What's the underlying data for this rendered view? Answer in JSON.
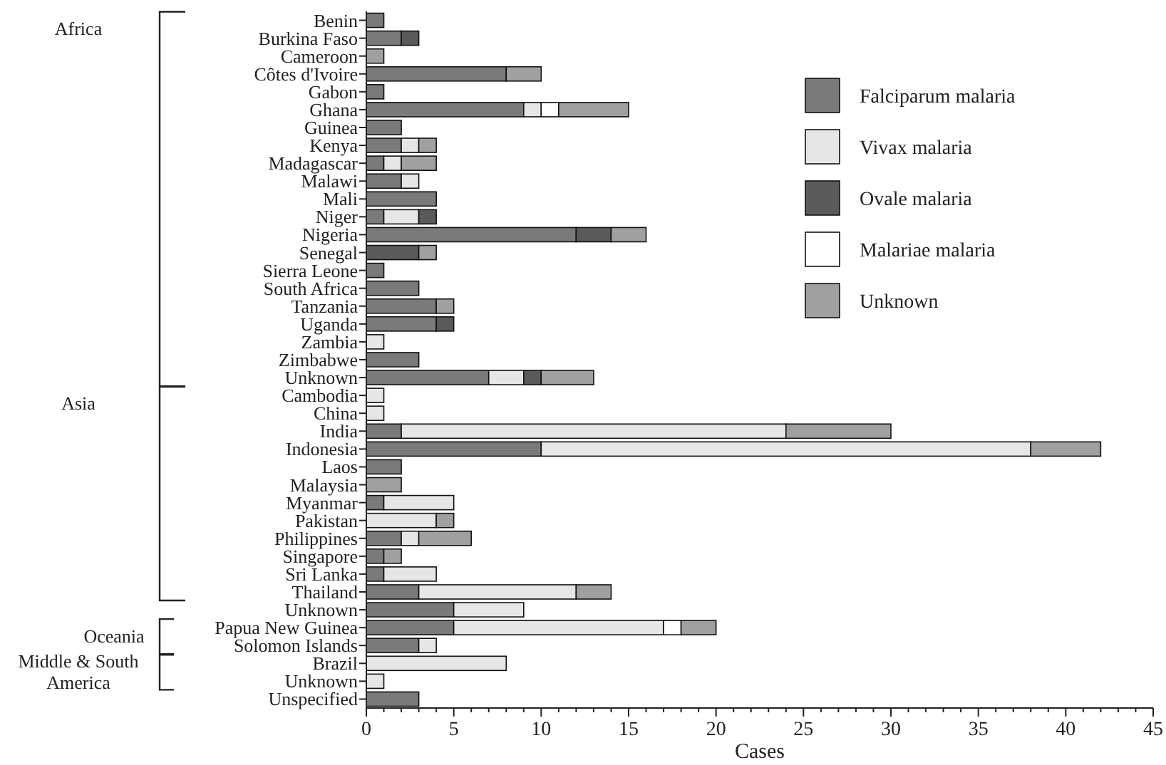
{
  "chart_data": {
    "type": "bar",
    "orientation": "horizontal",
    "stacked": true,
    "xlabel": "Cases",
    "categories": [
      "Benin",
      "Burkina Faso",
      "Cameroon",
      "Côtes d'Ivoire",
      "Gabon",
      "Ghana",
      "Guinea",
      "Kenya",
      "Madagascar",
      "Malawi",
      "Mali",
      "Niger",
      "Nigeria",
      "Senegal",
      "Sierra Leone",
      "South Africa",
      "Tanzania",
      "Uganda",
      "Zambia",
      "Zimbabwe",
      "Unknown",
      "Cambodia",
      "China",
      "India",
      "Indonesia",
      "Laos",
      "Malaysia",
      "Myanmar",
      "Pakistan",
      "Philippines",
      "Singapore",
      "Sri Lanka",
      "Thailand",
      "Unknown",
      "Papua New Guinea",
      "Solomon Islands",
      "Brazil",
      "Unknown",
      "Unspecified"
    ],
    "series": [
      {
        "name": "Falciparum malaria",
        "color": "#7a7a7a",
        "values": [
          1,
          2,
          0,
          8,
          1,
          9,
          2,
          2,
          1,
          2,
          4,
          1,
          12,
          0,
          1,
          3,
          4,
          4,
          0,
          3,
          7,
          0,
          0,
          2,
          10,
          2,
          0,
          1,
          0,
          2,
          1,
          1,
          3,
          5,
          5,
          3,
          0,
          0,
          3
        ]
      },
      {
        "name": "Vivax malaria",
        "color": "#e6e6e6",
        "values": [
          0,
          0,
          0,
          0,
          0,
          1,
          0,
          1,
          1,
          1,
          0,
          2,
          0,
          0,
          0,
          0,
          0,
          0,
          1,
          0,
          2,
          1,
          1,
          22,
          28,
          0,
          0,
          4,
          4,
          1,
          0,
          3,
          9,
          4,
          12,
          1,
          8,
          1,
          0
        ]
      },
      {
        "name": "Ovale malaria",
        "color": "#5a5a5a",
        "values": [
          0,
          1,
          0,
          0,
          0,
          0,
          0,
          0,
          0,
          0,
          0,
          1,
          2,
          3,
          0,
          0,
          0,
          1,
          0,
          0,
          1,
          0,
          0,
          0,
          0,
          0,
          0,
          0,
          0,
          0,
          0,
          0,
          0,
          0,
          0,
          0,
          0,
          0,
          0
        ]
      },
      {
        "name": "Malariae malaria",
        "color": "#ffffff",
        "values": [
          0,
          0,
          0,
          0,
          0,
          1,
          0,
          0,
          0,
          0,
          0,
          0,
          0,
          0,
          0,
          0,
          0,
          0,
          0,
          0,
          0,
          0,
          0,
          0,
          0,
          0,
          0,
          0,
          0,
          0,
          0,
          0,
          0,
          0,
          1,
          0,
          0,
          0,
          0
        ]
      },
      {
        "name": "Unknown",
        "color": "#a0a0a0",
        "values": [
          0,
          0,
          1,
          2,
          0,
          4,
          0,
          1,
          2,
          0,
          0,
          0,
          2,
          1,
          0,
          0,
          1,
          0,
          0,
          0,
          3,
          0,
          0,
          6,
          4,
          0,
          2,
          0,
          1,
          3,
          1,
          0,
          2,
          0,
          2,
          0,
          0,
          0,
          0
        ]
      }
    ],
    "xlim": [
      0,
      45
    ],
    "xticks": [
      0,
      {
        "value": 1,
        "label": null
      },
      {
        "value": 2,
        "label": null
      },
      {
        "value": 3,
        "label": null
      },
      {
        "value": 4,
        "label": null
      },
      5,
      {
        "value": 6,
        "label": null
      },
      {
        "value": 7,
        "label": null
      },
      {
        "value": 8,
        "label": null
      },
      {
        "value": 9,
        "label": null
      },
      10,
      {
        "value": 11,
        "label": null
      },
      {
        "value": 12,
        "label": null
      },
      {
        "value": 13,
        "label": null
      },
      {
        "value": 14,
        "label": null
      },
      15,
      {
        "value": 16,
        "label": null
      },
      {
        "value": 17,
        "label": null
      },
      {
        "value": 18,
        "label": null
      },
      {
        "value": 19,
        "label": null
      },
      20,
      {
        "value": 21,
        "label": null
      },
      {
        "value": 22,
        "label": null
      },
      {
        "value": 23,
        "label": null
      },
      {
        "value": 24,
        "label": null
      },
      25,
      {
        "value": 26,
        "label": null
      },
      {
        "value": 27,
        "label": null
      },
      {
        "value": 28,
        "label": null
      },
      {
        "value": 29,
        "label": null
      },
      30,
      {
        "value": 31,
        "label": null
      },
      {
        "value": 32,
        "label": null
      },
      {
        "value": 33,
        "label": null
      },
      {
        "value": 34,
        "label": null
      },
      35,
      {
        "value": 36,
        "label": null
      },
      {
        "value": 37,
        "label": null
      },
      {
        "value": 38,
        "label": null
      },
      {
        "value": 39,
        "label": null
      },
      40,
      {
        "value": 41,
        "label": null
      },
      {
        "value": 42,
        "label": null
      },
      {
        "value": 43,
        "label": null
      },
      {
        "value": 44,
        "label": null
      },
      45
    ],
    "annotations": [
      "Africa",
      "Asia",
      "Oceania",
      "Middle & South America"
    ],
    "legend": "top right",
    "grid": false
  }
}
